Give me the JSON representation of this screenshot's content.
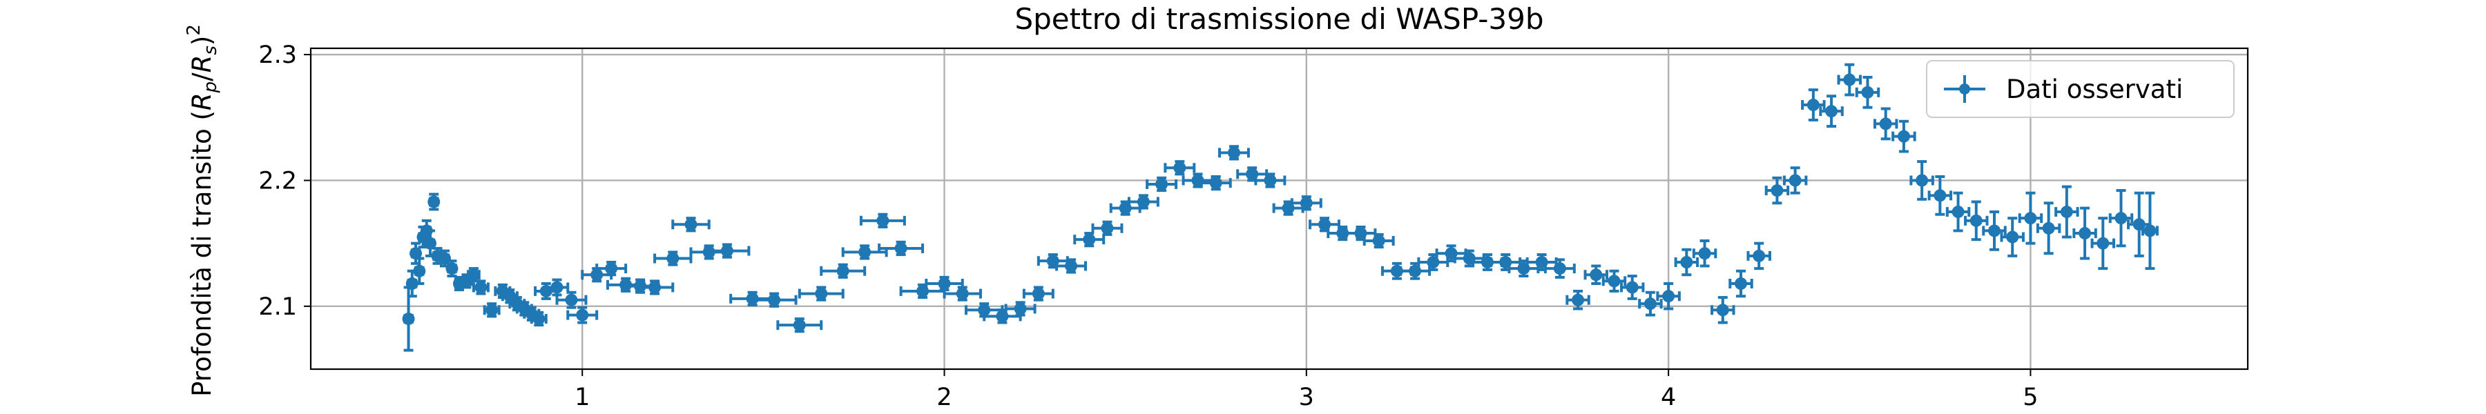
{
  "chart_data": {
    "type": "scatter",
    "title": "Spettro di trasmissione di WASP-39b",
    "xlabel": "",
    "ylabel_parts": [
      "Profondità di transito (",
      "R",
      "p",
      "/",
      "R",
      "s",
      ")",
      "2"
    ],
    "xlim": [
      0.25,
      5.6
    ],
    "ylim": [
      2.05,
      2.305
    ],
    "x_ticks": [
      1,
      2,
      3,
      4,
      5
    ],
    "y_ticks": [
      2.1,
      2.2,
      2.3
    ],
    "x_tick_labels": [
      "1",
      "2",
      "3",
      "4",
      "5"
    ],
    "y_tick_labels": [
      "2.1",
      "2.2",
      "2.3"
    ],
    "grid": true,
    "legend_position": "upper-right",
    "colors": {
      "series": "#1f77b4",
      "grid": "#b0b0b0",
      "frame": "#000000"
    },
    "series": [
      {
        "name": "Dati osservati",
        "x": [
          0.52,
          0.53,
          0.54,
          0.55,
          0.56,
          0.57,
          0.58,
          0.59,
          0.6,
          0.62,
          0.64,
          0.66,
          0.68,
          0.7,
          0.72,
          0.75,
          0.78,
          0.8,
          0.82,
          0.84,
          0.86,
          0.88,
          0.9,
          0.93,
          0.97,
          1.0,
          1.04,
          1.08,
          1.12,
          1.16,
          1.2,
          1.25,
          1.3,
          1.35,
          1.4,
          1.47,
          1.53,
          1.6,
          1.66,
          1.72,
          1.78,
          1.83,
          1.88,
          1.94,
          2.0,
          2.05,
          2.11,
          2.16,
          2.21,
          2.26,
          2.3,
          2.35,
          2.4,
          2.45,
          2.5,
          2.55,
          2.6,
          2.65,
          2.7,
          2.75,
          2.8,
          2.85,
          2.9,
          2.95,
          3.0,
          3.05,
          3.1,
          3.15,
          3.2,
          3.25,
          3.3,
          3.35,
          3.4,
          3.45,
          3.5,
          3.55,
          3.6,
          3.65,
          3.7,
          3.75,
          3.8,
          3.85,
          3.9,
          3.95,
          4.0,
          4.05,
          4.1,
          4.15,
          4.2,
          4.25,
          4.3,
          4.35,
          4.4,
          4.45,
          4.5,
          4.55,
          4.6,
          4.65,
          4.7,
          4.75,
          4.8,
          4.85,
          4.9,
          4.95,
          5.0,
          5.05,
          5.1,
          5.15,
          5.2,
          5.25,
          5.3,
          5.33
        ],
        "y": [
          2.09,
          2.118,
          2.142,
          2.128,
          2.155,
          2.16,
          2.15,
          2.183,
          2.14,
          2.138,
          2.13,
          2.118,
          2.12,
          2.125,
          2.115,
          2.097,
          2.112,
          2.108,
          2.102,
          2.098,
          2.094,
          2.09,
          2.112,
          2.115,
          2.105,
          2.093,
          2.125,
          2.13,
          2.117,
          2.116,
          2.115,
          2.138,
          2.165,
          2.143,
          2.144,
          2.106,
          2.105,
          2.085,
          2.11,
          2.128,
          2.143,
          2.168,
          2.146,
          2.112,
          2.118,
          2.11,
          2.097,
          2.092,
          2.098,
          2.11,
          2.136,
          2.132,
          2.153,
          2.162,
          2.178,
          2.183,
          2.197,
          2.21,
          2.2,
          2.198,
          2.222,
          2.205,
          2.2,
          2.178,
          2.182,
          2.165,
          2.158,
          2.158,
          2.152,
          2.128,
          2.128,
          2.135,
          2.142,
          2.138,
          2.135,
          2.135,
          2.13,
          2.135,
          2.13,
          2.105,
          2.125,
          2.12,
          2.115,
          2.102,
          2.108,
          2.135,
          2.142,
          2.097,
          2.118,
          2.14,
          2.192,
          2.2,
          2.26,
          2.255,
          2.28,
          2.27,
          2.245,
          2.235,
          2.2,
          2.188,
          2.175,
          2.168,
          2.16,
          2.155,
          2.17,
          2.162,
          2.175,
          2.158,
          2.15,
          2.17,
          2.165,
          2.16
        ],
        "xerr": [
          0.01,
          0.01,
          0.01,
          0.01,
          0.01,
          0.01,
          0.01,
          0.01,
          0.01,
          0.01,
          0.01,
          0.01,
          0.015,
          0.015,
          0.02,
          0.02,
          0.02,
          0.02,
          0.02,
          0.02,
          0.02,
          0.02,
          0.03,
          0.03,
          0.04,
          0.04,
          0.04,
          0.04,
          0.05,
          0.05,
          0.05,
          0.05,
          0.05,
          0.05,
          0.06,
          0.06,
          0.06,
          0.06,
          0.06,
          0.06,
          0.06,
          0.06,
          0.06,
          0.06,
          0.05,
          0.05,
          0.05,
          0.05,
          0.04,
          0.04,
          0.04,
          0.04,
          0.04,
          0.04,
          0.04,
          0.04,
          0.04,
          0.04,
          0.04,
          0.04,
          0.04,
          0.04,
          0.04,
          0.04,
          0.04,
          0.04,
          0.04,
          0.04,
          0.04,
          0.04,
          0.04,
          0.04,
          0.04,
          0.04,
          0.04,
          0.04,
          0.04,
          0.04,
          0.04,
          0.03,
          0.03,
          0.03,
          0.03,
          0.03,
          0.03,
          0.03,
          0.03,
          0.03,
          0.03,
          0.03,
          0.03,
          0.03,
          0.03,
          0.03,
          0.03,
          0.03,
          0.03,
          0.03,
          0.03,
          0.03,
          0.03,
          0.03,
          0.03,
          0.03,
          0.03,
          0.03,
          0.03,
          0.03,
          0.03,
          0.03,
          0.03,
          0.02
        ],
        "yerr": [
          0.025,
          0.01,
          0.008,
          0.01,
          0.008,
          0.008,
          0.01,
          0.006,
          0.006,
          0.006,
          0.006,
          0.005,
          0.005,
          0.005,
          0.005,
          0.005,
          0.005,
          0.005,
          0.005,
          0.005,
          0.005,
          0.005,
          0.006,
          0.006,
          0.006,
          0.006,
          0.005,
          0.005,
          0.005,
          0.005,
          0.005,
          0.005,
          0.005,
          0.005,
          0.005,
          0.005,
          0.005,
          0.005,
          0.005,
          0.005,
          0.005,
          0.005,
          0.005,
          0.005,
          0.005,
          0.005,
          0.005,
          0.005,
          0.005,
          0.005,
          0.005,
          0.005,
          0.005,
          0.005,
          0.005,
          0.005,
          0.005,
          0.005,
          0.005,
          0.005,
          0.005,
          0.005,
          0.005,
          0.005,
          0.005,
          0.005,
          0.005,
          0.005,
          0.005,
          0.006,
          0.006,
          0.006,
          0.006,
          0.006,
          0.006,
          0.006,
          0.006,
          0.006,
          0.007,
          0.007,
          0.007,
          0.008,
          0.009,
          0.009,
          0.01,
          0.01,
          0.01,
          0.01,
          0.01,
          0.01,
          0.01,
          0.01,
          0.012,
          0.012,
          0.012,
          0.012,
          0.012,
          0.012,
          0.015,
          0.015,
          0.015,
          0.015,
          0.015,
          0.015,
          0.02,
          0.02,
          0.02,
          0.02,
          0.02,
          0.022,
          0.025,
          0.03
        ]
      }
    ]
  }
}
